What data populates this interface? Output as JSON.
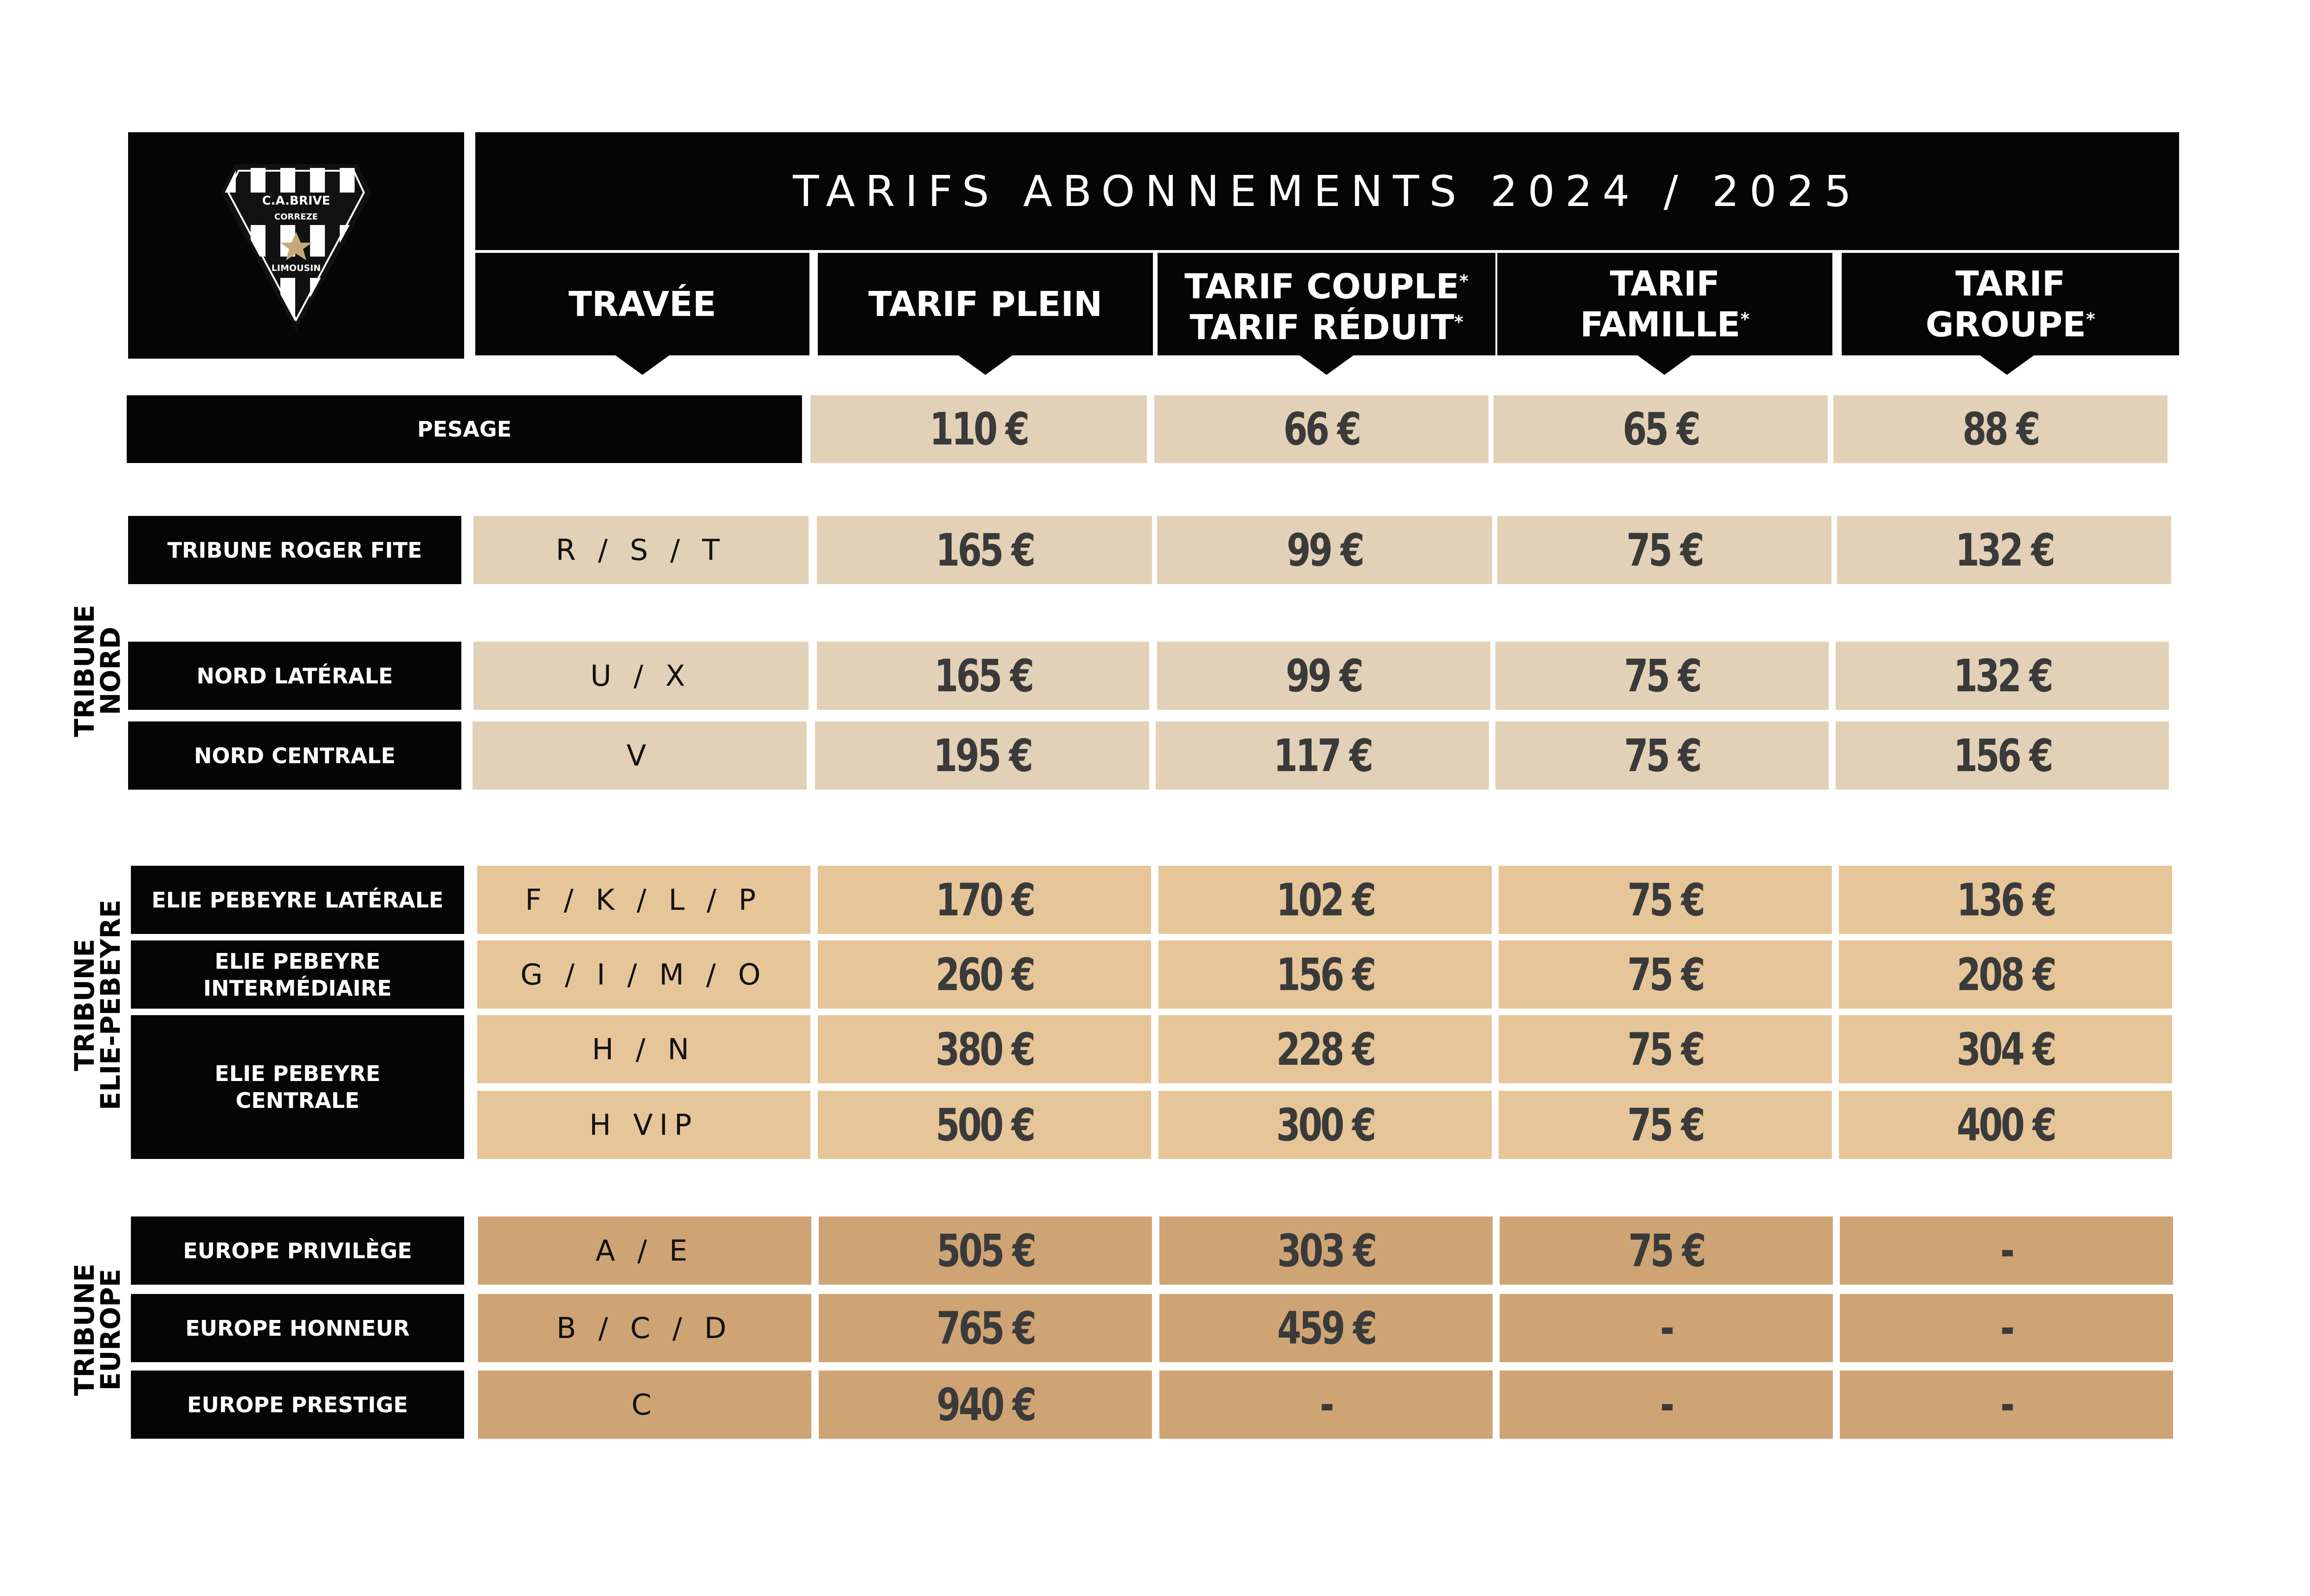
{
  "logo": {
    "name": "C.A.BRIVE",
    "sub": "CORREZE",
    "region": "LIMOUSIN"
  },
  "title": "TARIFS ABONNEMENTS 2024 / 2025",
  "headers": {
    "travee": "TRAVÉE",
    "plein": "TARIF PLEIN",
    "couple": "TARIF COUPLE",
    "reduit": "TARIF RÉDUIT",
    "famille_1": "TARIF",
    "famille_2": "FAMILLE",
    "groupe_1": "TARIF",
    "groupe_2": "GROUPE",
    "asterisk": "*"
  },
  "groups": {
    "nord_1": "TRIBUNE",
    "nord_2": "NORD",
    "elie_1": "TRIBUNE",
    "elie_2": "ELIE-PEBEYRE",
    "europe_1": "TRIBUNE",
    "europe_2": "EUROPE"
  },
  "rows": [
    {
      "label": "PESAGE",
      "travee": "",
      "plein": "110 €",
      "couple": "66 €",
      "famille": "65 €",
      "groupe": "88 €"
    },
    {
      "label": "TRIBUNE ROGER FITE",
      "travee": "R / S / T",
      "plein": "165 €",
      "couple": "99 €",
      "famille": "75 €",
      "groupe": "132 €"
    },
    {
      "label": "NORD LATÉRALE",
      "travee": "U / X",
      "plein": "165 €",
      "couple": "99 €",
      "famille": "75 €",
      "groupe": "132 €"
    },
    {
      "label": "NORD CENTRALE",
      "travee": "V",
      "plein": "195 €",
      "couple": "117 €",
      "famille": "75 €",
      "groupe": "156 €"
    },
    {
      "label": "ELIE PEBEYRE LATÉRALE",
      "travee": "F / K / L / P",
      "plein": "170 €",
      "couple": "102 €",
      "famille": "75 €",
      "groupe": "136 €"
    },
    {
      "label_1": "ELIE PEBEYRE",
      "label_2": "INTERMÉDIAIRE",
      "travee": "G / I / M / O",
      "plein": "260 €",
      "couple": "156 €",
      "famille": "75 €",
      "groupe": "208 €"
    },
    {
      "label_1": "ELIE PEBEYRE",
      "label_2": "CENTRALE",
      "travee": "H / N",
      "plein": "380 €",
      "couple": "228 €",
      "famille": "75 €",
      "groupe": "304 €"
    },
    {
      "travee": "H VIP",
      "plein": "500 €",
      "couple": "300 €",
      "famille": "75 €",
      "groupe": "400 €"
    },
    {
      "label": "EUROPE PRIVILÈGE",
      "travee": "A / E",
      "plein": "505 €",
      "couple": "303 €",
      "famille": "75 €",
      "groupe": "-"
    },
    {
      "label": "EUROPE HONNEUR",
      "travee": "B / C / D",
      "plein": "765 €",
      "couple": "459 €",
      "famille": "-",
      "groupe": "-"
    },
    {
      "label": "EUROPE PRESTIGE",
      "travee": "C",
      "plein": "940 €",
      "couple": "-",
      "famille": "-",
      "groupe": "-"
    }
  ]
}
